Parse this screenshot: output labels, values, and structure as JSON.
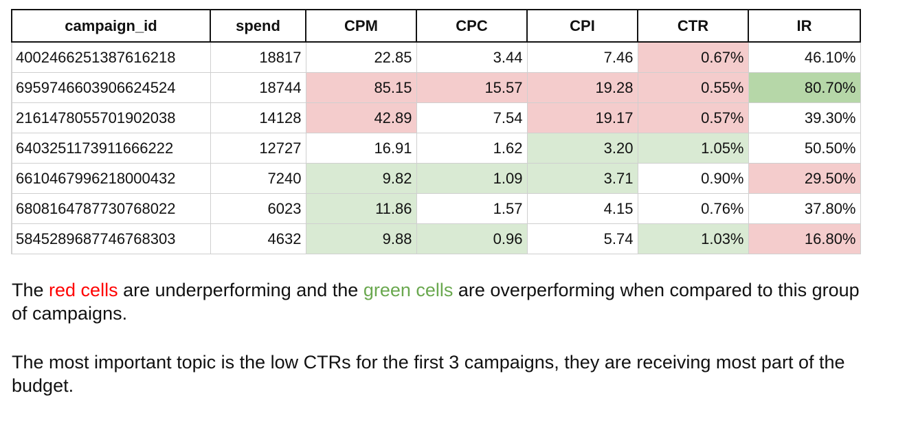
{
  "table": {
    "headers": [
      "campaign_id",
      "spend",
      "CPM",
      "CPC",
      "CPI",
      "CTR",
      "IR"
    ],
    "rows": [
      {
        "cells": [
          "4002466251387616218",
          "18817",
          "22.85",
          "3.44",
          "7.46",
          "0.67%",
          "46.10%"
        ],
        "status": [
          "none",
          "none",
          "none",
          "none",
          "none",
          "red",
          "none"
        ]
      },
      {
        "cells": [
          "6959746603906624524",
          "18744",
          "85.15",
          "15.57",
          "19.28",
          "0.55%",
          "80.70%"
        ],
        "status": [
          "none",
          "none",
          "red",
          "red",
          "red",
          "red",
          "dgreen"
        ]
      },
      {
        "cells": [
          "2161478055701902038",
          "14128",
          "42.89",
          "7.54",
          "19.17",
          "0.57%",
          "39.30%"
        ],
        "status": [
          "none",
          "none",
          "red",
          "none",
          "red",
          "red",
          "none"
        ]
      },
      {
        "cells": [
          "6403251173911666222",
          "12727",
          "16.91",
          "1.62",
          "3.20",
          "1.05%",
          "50.50%"
        ],
        "status": [
          "none",
          "none",
          "none",
          "none",
          "green",
          "green",
          "none"
        ]
      },
      {
        "cells": [
          "6610467996218000432",
          "7240",
          "9.82",
          "1.09",
          "3.71",
          "0.90%",
          "29.50%"
        ],
        "status": [
          "none",
          "none",
          "green",
          "green",
          "green",
          "none",
          "red"
        ]
      },
      {
        "cells": [
          "6808164787730768022",
          "6023",
          "11.86",
          "1.57",
          "4.15",
          "0.76%",
          "37.80%"
        ],
        "status": [
          "none",
          "none",
          "green",
          "none",
          "none",
          "none",
          "none"
        ]
      },
      {
        "cells": [
          "5845289687746768303",
          "4632",
          "9.88",
          "0.96",
          "5.74",
          "1.03%",
          "16.80%"
        ],
        "status": [
          "none",
          "none",
          "green",
          "green",
          "none",
          "green",
          "red"
        ]
      }
    ]
  },
  "colors": {
    "red_cell": "#f4cccc",
    "green_cell": "#d9ead3",
    "dark_green_cell": "#b6d7a8",
    "red_text": "#ff0000",
    "green_text": "#6aa84f"
  },
  "notes": {
    "p1_a": "The ",
    "p1_red": "red cells",
    "p1_b": " are underperforming and the ",
    "p1_green": "green cells",
    "p1_c": " are overperforming when compared to this group of campaigns.",
    "p2": "The most important topic is the low CTRs for the first 3 campaigns, they are receiving most part of the budget."
  }
}
